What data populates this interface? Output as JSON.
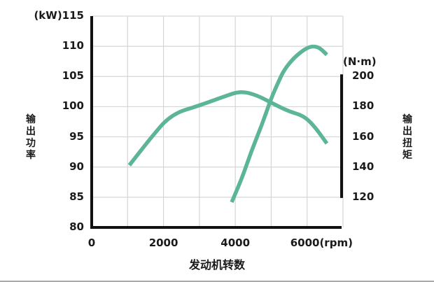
{
  "chart_data": {
    "type": "line",
    "title": "",
    "xlabel": "发动机转数",
    "x_unit": "(rpm)",
    "xlim": [
      0,
      7000
    ],
    "x_ticks": [
      0,
      2000,
      4000,
      6000
    ],
    "x_tick_labels": [
      "0",
      "2000",
      "4000",
      "6000(rpm)"
    ],
    "ylabel_left": "输出功率",
    "y_unit_left": "(kW)",
    "ylim_left": [
      80,
      115
    ],
    "y_ticks_left": [
      80,
      85,
      90,
      95,
      100,
      105,
      110,
      115
    ],
    "y_tick_labels_left": [
      "80",
      "85",
      "90",
      "95",
      "100",
      "105",
      "110",
      "(kW)115"
    ],
    "ylabel_right": "输出扭矩",
    "y_unit_right": "(N·m)",
    "ylim_right": [
      120,
      200
    ],
    "y_ticks_right": [
      120,
      140,
      160,
      180,
      200
    ],
    "y_tick_labels_right": [
      "120",
      "140",
      "160",
      "180",
      "200"
    ],
    "grid": true,
    "legend": "none",
    "series": [
      {
        "name": "输出功率",
        "axis": "left",
        "color": "#5bb596",
        "points": [
          [
            1050,
            90.3
          ],
          [
            1600,
            94.5
          ],
          [
            2200,
            98.7
          ],
          [
            3000,
            100.2
          ],
          [
            3700,
            101.7
          ],
          [
            4150,
            102.6
          ],
          [
            4600,
            101.9
          ],
          [
            5050,
            100.5
          ],
          [
            5500,
            99.2
          ],
          [
            5900,
            98.5
          ],
          [
            6200,
            96.8
          ],
          [
            6550,
            93.9
          ]
        ]
      },
      {
        "name": "输出扭矩",
        "axis": "right",
        "color": "#5bb596",
        "points": [
          [
            3900,
            116.7
          ],
          [
            4200,
            133.5
          ],
          [
            4450,
            150.7
          ],
          [
            4750,
            168.5
          ],
          [
            5000,
            185.6
          ],
          [
            5200,
            196.3
          ],
          [
            5350,
            204.0
          ],
          [
            5600,
            211.5
          ],
          [
            5850,
            216.7
          ],
          [
            6050,
            219.5
          ],
          [
            6200,
            220.0
          ],
          [
            6350,
            219.0
          ],
          [
            6550,
            214.4
          ]
        ]
      }
    ]
  },
  "layout": {
    "curve_color": "#5bb596",
    "grid_color": "#d6d6d6",
    "axis_color": "#111111"
  }
}
